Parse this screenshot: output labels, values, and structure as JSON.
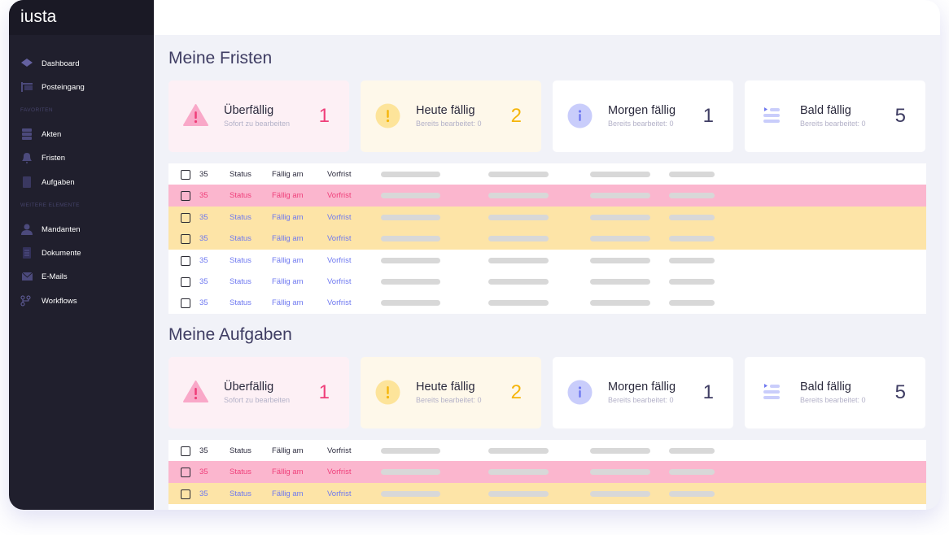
{
  "app": {
    "logo": "iusta"
  },
  "sidebar": {
    "items_top": [
      {
        "label": "Dashboard",
        "icon": "dashboard-icon"
      },
      {
        "label": "Posteingang",
        "icon": "inbox-icon"
      }
    ],
    "section_favorites": "FAVORITEN",
    "favorites": [
      {
        "label": "Akten",
        "icon": "files-icon"
      },
      {
        "label": "Fristen",
        "icon": "bell-icon"
      },
      {
        "label": "Aufgaben",
        "icon": "clipboard-icon"
      }
    ],
    "section_more": "WEITERE ELEMENTE",
    "more": [
      {
        "label": "Mandanten",
        "icon": "user-icon"
      },
      {
        "label": "Dokumente",
        "icon": "document-icon"
      },
      {
        "label": "E-Mails",
        "icon": "mail-icon"
      },
      {
        "label": "Workflows",
        "icon": "workflow-icon"
      }
    ]
  },
  "sections": [
    {
      "title": "Meine Fristen",
      "cards": [
        {
          "title": "Überfällig",
          "sub": "Sofort zu bearbeiten",
          "count": "1"
        },
        {
          "title": "Heute fällig",
          "sub": "Bereits bearbeitet: 0",
          "count": "2"
        },
        {
          "title": "Morgen fällig",
          "sub": "Bereits bearbeitet: 0",
          "count": "1"
        },
        {
          "title": "Bald fällig",
          "sub": "Bereits bearbeitet: 0",
          "count": "5"
        }
      ],
      "rows": [
        {
          "id": "35",
          "status": "Status",
          "due": "Fällig am",
          "pre": "Vorfrist",
          "tone": "normal"
        },
        {
          "id": "35",
          "status": "Status",
          "due": "Fällig am",
          "pre": "Vorfrist",
          "tone": "overdue"
        },
        {
          "id": "35",
          "status": "Status",
          "due": "Fällig am",
          "pre": "Vorfrist",
          "tone": "today"
        },
        {
          "id": "35",
          "status": "Status",
          "due": "Fällig am",
          "pre": "Vorfrist",
          "tone": "today"
        },
        {
          "id": "35",
          "status": "Status",
          "due": "Fällig am",
          "pre": "Vorfrist",
          "tone": "link"
        },
        {
          "id": "35",
          "status": "Status",
          "due": "Fällig am",
          "pre": "Vorfrist",
          "tone": "link"
        },
        {
          "id": "35",
          "status": "Status",
          "due": "Fällig am",
          "pre": "Vorfrist",
          "tone": "link"
        }
      ]
    },
    {
      "title": "Meine Aufgaben",
      "cards": [
        {
          "title": "Überfällig",
          "sub": "Sofort zu bearbeiten",
          "count": "1"
        },
        {
          "title": "Heute fällig",
          "sub": "Bereits bearbeitet: 0",
          "count": "2"
        },
        {
          "title": "Morgen fällig",
          "sub": "Bereits bearbeitet: 0",
          "count": "1"
        },
        {
          "title": "Bald fällig",
          "sub": "Bereits bearbeitet: 0",
          "count": "5"
        }
      ],
      "rows": [
        {
          "id": "35",
          "status": "Status",
          "due": "Fällig am",
          "pre": "Vorfrist",
          "tone": "normal"
        },
        {
          "id": "35",
          "status": "Status",
          "due": "Fällig am",
          "pre": "Vorfrist",
          "tone": "overdue"
        },
        {
          "id": "35",
          "status": "Status",
          "due": "Fällig am",
          "pre": "Vorfrist",
          "tone": "today"
        }
      ]
    }
  ],
  "colors": {
    "overdue": "#ef3f7a",
    "today": "#f5b50a",
    "info": "#3f3d63",
    "link": "#6e78f0"
  }
}
